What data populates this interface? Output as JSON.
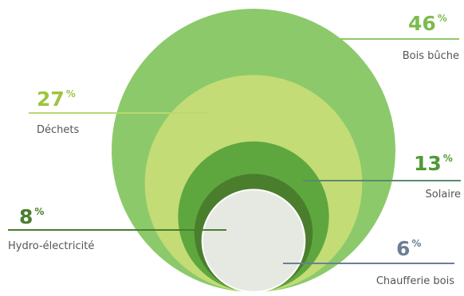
{
  "chart_data": {
    "type": "bubble",
    "unit": "%",
    "items": [
      {
        "label": "Bois bûche",
        "value": 46,
        "color": "#8cc96b",
        "line_color": "#8cc96b",
        "text_color": "#7dbb4e"
      },
      {
        "label": "Déchets",
        "value": 27,
        "color": "#c3dc75",
        "line_color": "#b8d870",
        "text_color": "#9fc43e"
      },
      {
        "label": "Solaire",
        "value": 13,
        "color": "#5ea73e",
        "line_color": "#5a8a6e",
        "text_color": "#4f9a35"
      },
      {
        "label": "Hydro-électricité",
        "value": 8,
        "color": "#4a7e2d",
        "line_color": "#4a7e2d",
        "text_color": "#4a7e2d"
      },
      {
        "label": "Chaufferie bois",
        "value": 6,
        "color": "#e6e9e1",
        "line_color": "#6b7f95",
        "text_color": "#6b7f95"
      }
    ]
  }
}
